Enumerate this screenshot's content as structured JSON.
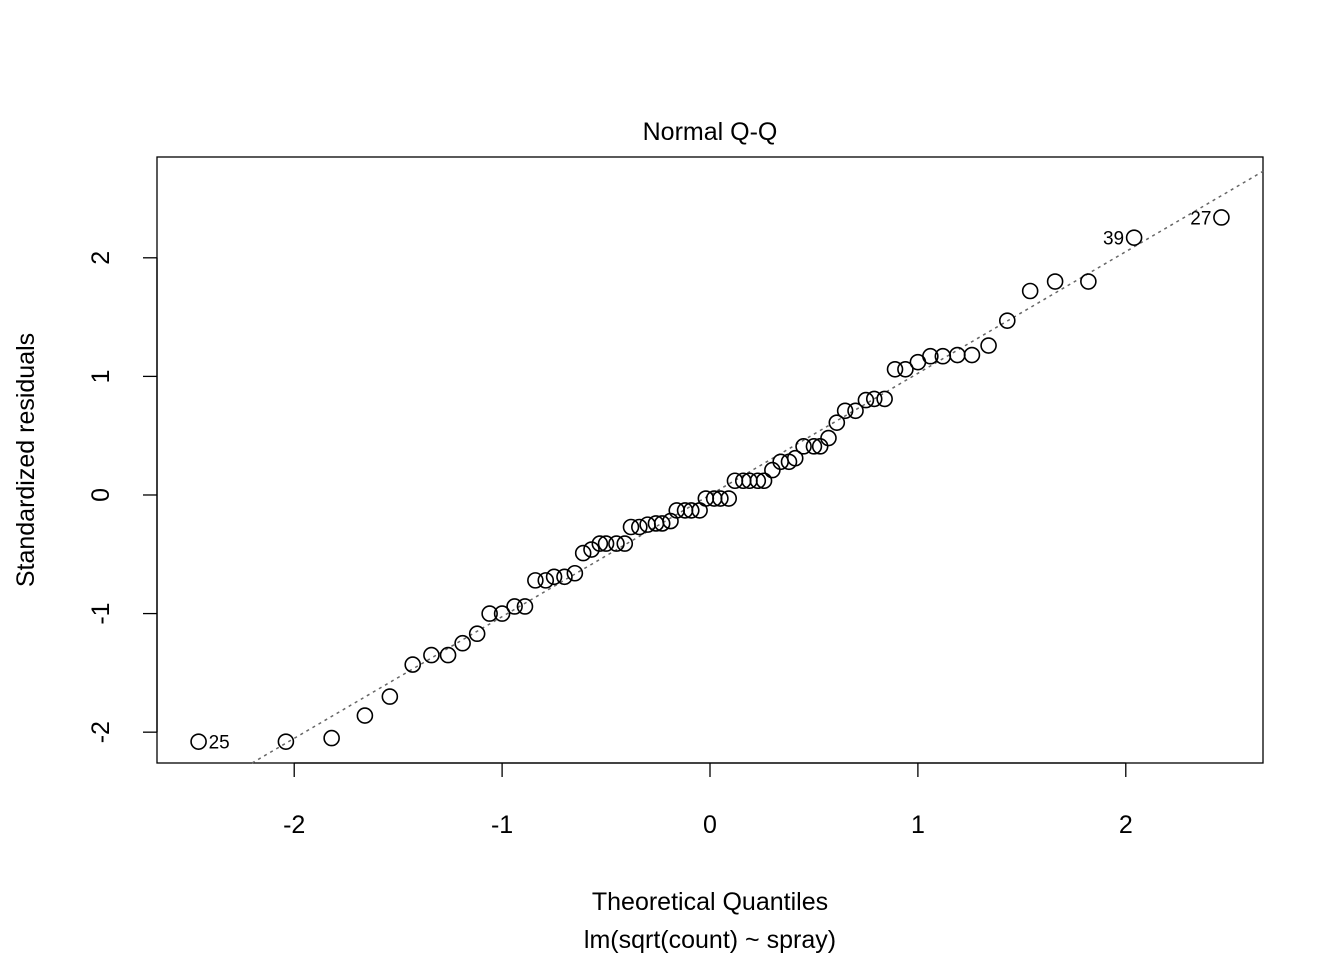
{
  "chart_data": {
    "type": "scatter",
    "title": "Normal Q-Q",
    "xlabel": "Theoretical Quantiles",
    "subtitle": "lm(sqrt(count) ~ spray)",
    "ylabel": "Standardized residuals",
    "xlim": [
      -2.66,
      2.66
    ],
    "ylim": [
      -2.26,
      2.85
    ],
    "xticks": [
      "-2",
      "-1",
      "0",
      "1",
      "2"
    ],
    "yticks": [
      "-2",
      "-1",
      "0",
      "1",
      "2"
    ],
    "grid": false,
    "marker": "open-circle",
    "reference_line": {
      "style": "dotted",
      "color": "#666666",
      "intercept": 0.0,
      "slope": 1.026
    },
    "points": {
      "x": [
        -2.46,
        -2.04,
        -1.82,
        -1.66,
        -1.54,
        -1.43,
        -1.34,
        -1.26,
        -1.19,
        -1.12,
        -1.06,
        -1.0,
        -0.94,
        -0.89,
        -0.84,
        -0.79,
        -0.75,
        -0.7,
        -0.65,
        -0.61,
        -0.57,
        -0.53,
        -0.5,
        -0.45,
        -0.41,
        -0.38,
        -0.34,
        -0.3,
        -0.26,
        -0.23,
        -0.19,
        -0.16,
        -0.12,
        -0.09,
        -0.05,
        -0.02,
        0.02,
        0.05,
        0.09,
        0.12,
        0.16,
        0.19,
        0.23,
        0.26,
        0.3,
        0.34,
        0.38,
        0.41,
        0.45,
        0.5,
        0.53,
        0.57,
        0.61,
        0.65,
        0.7,
        0.75,
        0.79,
        0.84,
        0.89,
        0.94,
        1.0,
        1.06,
        1.12,
        1.19,
        1.26,
        1.34,
        1.43,
        1.54,
        1.66,
        1.82,
        2.04,
        2.46
      ],
      "y": [
        -2.08,
        -2.08,
        -2.05,
        -1.86,
        -1.7,
        -1.43,
        -1.35,
        -1.35,
        -1.25,
        -1.17,
        -1.0,
        -1.0,
        -0.94,
        -0.94,
        -0.72,
        -0.72,
        -0.69,
        -0.69,
        -0.66,
        -0.49,
        -0.46,
        -0.41,
        -0.41,
        -0.41,
        -0.41,
        -0.27,
        -0.27,
        -0.25,
        -0.24,
        -0.24,
        -0.22,
        -0.13,
        -0.13,
        -0.13,
        -0.13,
        -0.03,
        -0.03,
        -0.03,
        -0.03,
        0.12,
        0.12,
        0.12,
        0.12,
        0.12,
        0.21,
        0.28,
        0.28,
        0.31,
        0.41,
        0.41,
        0.41,
        0.48,
        0.61,
        0.71,
        0.71,
        0.8,
        0.81,
        0.81,
        1.06,
        1.06,
        1.12,
        1.17,
        1.17,
        1.18,
        1.18,
        1.26,
        1.47,
        1.72,
        1.8,
        1.8,
        2.17,
        2.34
      ]
    },
    "annotations": [
      {
        "text": "25",
        "point_index": 0,
        "side": "right"
      },
      {
        "text": "39",
        "point_index": 70,
        "side": "left"
      },
      {
        "text": "27",
        "point_index": 71,
        "side": "left"
      }
    ]
  }
}
